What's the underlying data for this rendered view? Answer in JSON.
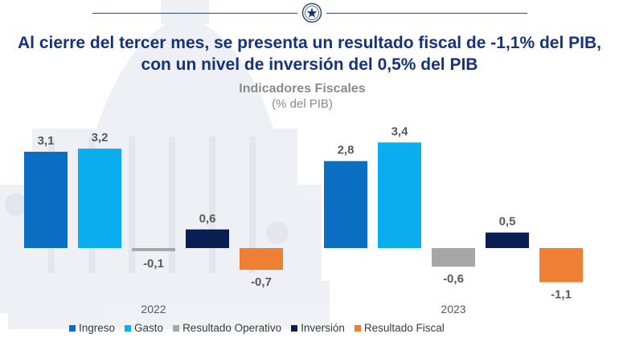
{
  "header": {
    "headline": "Al cierre del tercer mes, se presenta un resultado fiscal de -1,1% del PIB, con un nivel de inversión del 0,5% del PIB"
  },
  "chart_data": {
    "type": "bar",
    "title": "Indicadores Fiscales",
    "subtitle": "(% del PIB)",
    "categories": [
      "2022",
      "2023"
    ],
    "series": [
      {
        "name": "Ingreso",
        "color": "#0a6fc2",
        "values": [
          3.1,
          2.8
        ],
        "labels": [
          "3,1",
          "2,8"
        ]
      },
      {
        "name": "Gasto",
        "color": "#0aaeef",
        "values": [
          3.2,
          3.4
        ],
        "labels": [
          "3,2",
          "3,4"
        ]
      },
      {
        "name": "Resultado Operativo",
        "color": "#a6a6a6",
        "values": [
          -0.1,
          -0.6
        ],
        "labels": [
          "-0,1",
          "-0,6"
        ]
      },
      {
        "name": "Inversión",
        "color": "#0b1e52",
        "values": [
          0.6,
          0.5
        ],
        "labels": [
          "0,6",
          "0,5"
        ]
      },
      {
        "name": "Resultado Fiscal",
        "color": "#ee7f33",
        "values": [
          -0.7,
          -1.1
        ],
        "labels": [
          "-0,7",
          "-1,1"
        ]
      }
    ],
    "ylim": [
      -1.2,
      3.5
    ],
    "xlabel": "",
    "ylabel": "",
    "legend": "bottom"
  }
}
